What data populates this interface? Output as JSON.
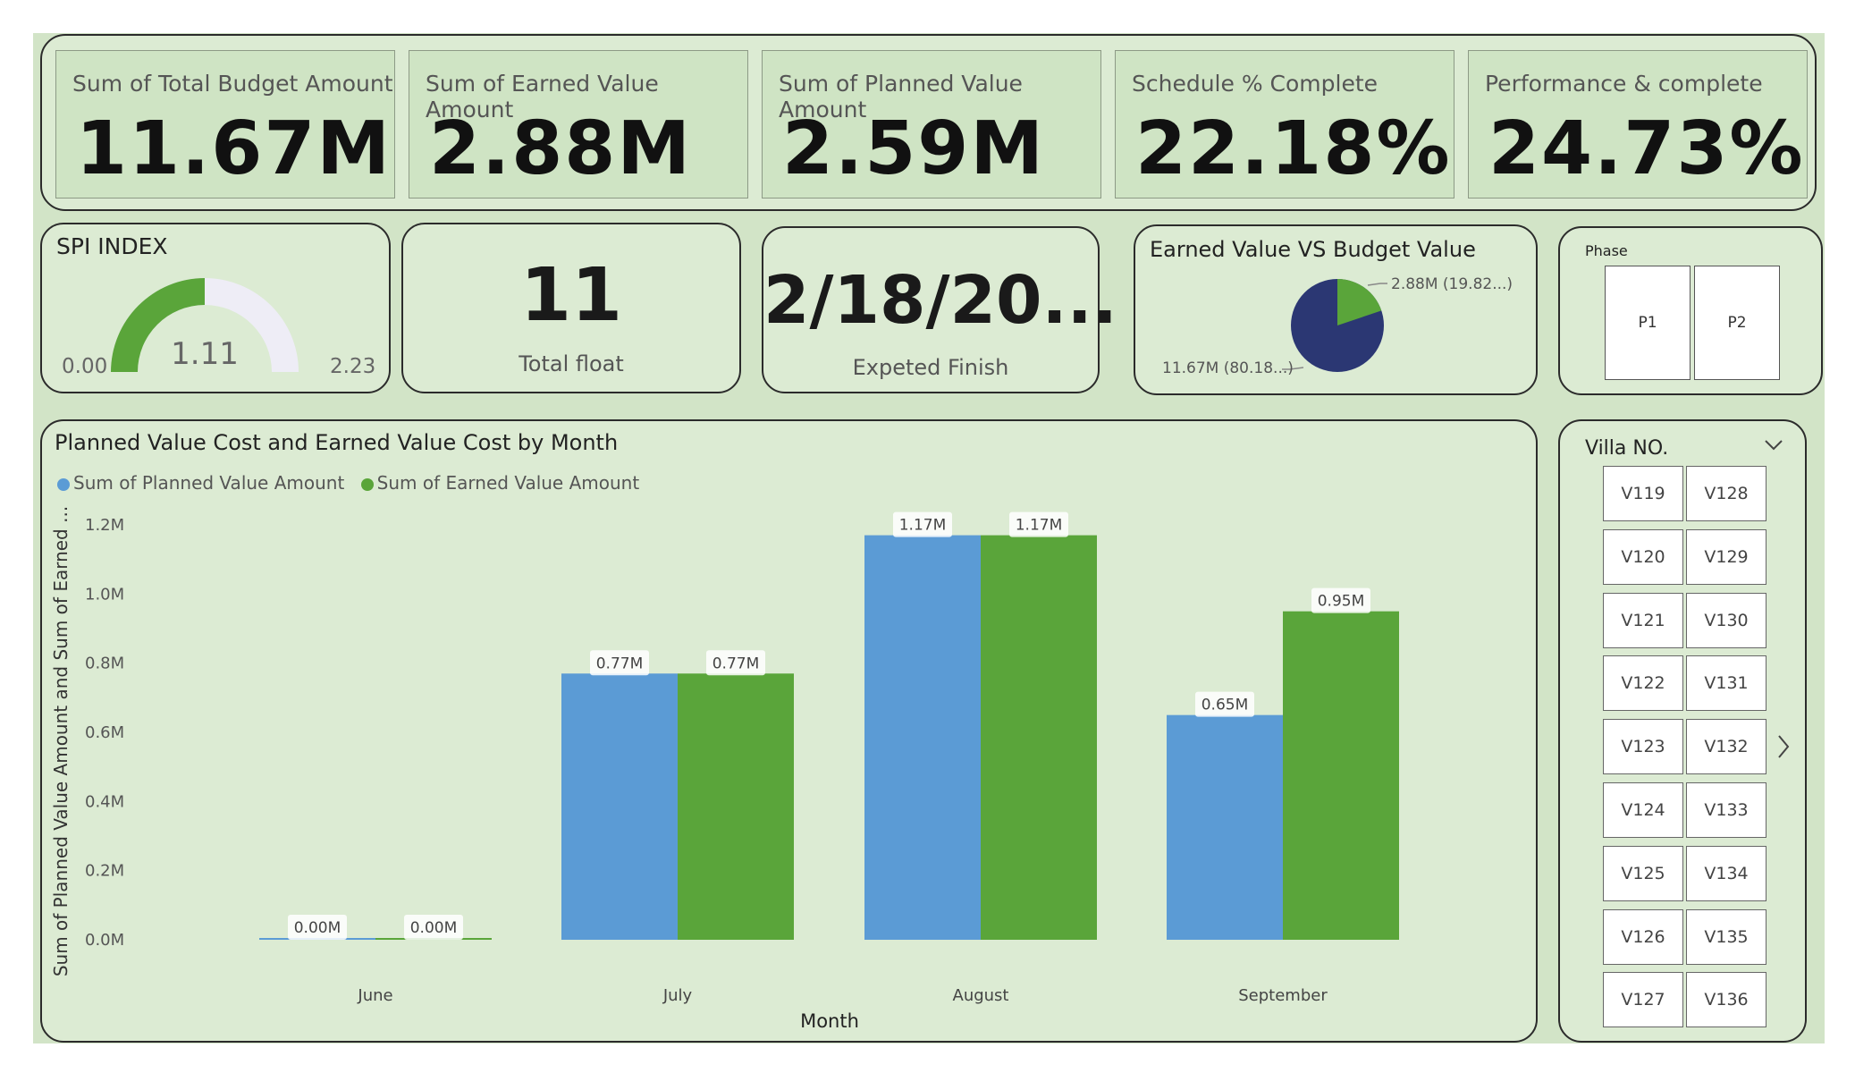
{
  "kpis": [
    {
      "label": "Sum of Total Budget Amount",
      "value": "11.67M"
    },
    {
      "label": "Sum of Earned Value Amount",
      "value": "2.88M"
    },
    {
      "label": "Sum of Planned Value Amount",
      "value": "2.59M"
    },
    {
      "label": "Schedule % Complete",
      "value": "22.18%"
    },
    {
      "label": "Performance & complete",
      "value": "24.73%"
    }
  ],
  "spi": {
    "title": "SPI INDEX",
    "min": "0.00",
    "value": "1.11",
    "max": "2.23",
    "fill_fraction": 0.5
  },
  "total_float": {
    "value": "11",
    "label": "Total float"
  },
  "finish": {
    "value": "2/18/20...",
    "label": "Expeted Finish"
  },
  "pie": {
    "title": "Earned Value VS Budget Value",
    "label_earned": "2.88M (19.82...)",
    "label_budget": "11.67M (80.18...)",
    "earned_fraction": 0.1982,
    "colors": {
      "earned": "#5aa53a",
      "budget": "#2b3773"
    }
  },
  "phase": {
    "title": "Phase",
    "items": [
      "P1",
      "P2"
    ]
  },
  "villa": {
    "title": "Villa NO.",
    "items": [
      "V119",
      "V128",
      "V120",
      "V129",
      "V121",
      "V130",
      "V122",
      "V131",
      "V123",
      "V132",
      "V124",
      "V133",
      "V125",
      "V134",
      "V126",
      "V135",
      "V127",
      "V136"
    ]
  },
  "bar_chart": {
    "title": "Planned Value Cost and Earned Value Cost by Month"
  },
  "chart_data": {
    "type": "bar",
    "title": "Planned Value Cost and Earned Value Cost by Month",
    "xlabel": "Month",
    "ylabel": "Sum of Planned Value Amount and Sum of Earned ...",
    "categories": [
      "June",
      "July",
      "August",
      "September"
    ],
    "series": [
      {
        "name": "Sum of Planned Value Amount",
        "values": [
          0.0,
          0.77,
          1.17,
          0.65
        ],
        "labels": [
          "0.00M",
          "0.77M",
          "1.17M",
          "0.65M"
        ],
        "color": "#5b9bd5"
      },
      {
        "name": "Sum of Earned Value Amount",
        "values": [
          0.0,
          0.77,
          1.17,
          0.95
        ],
        "labels": [
          "0.00M",
          "0.77M",
          "1.17M",
          "0.95M"
        ],
        "color": "#5aa53a"
      }
    ],
    "yticks": [
      "0.0M",
      "0.2M",
      "0.4M",
      "0.6M",
      "0.8M",
      "1.0M",
      "1.2M"
    ],
    "ylim": [
      0,
      1.2
    ],
    "legend_position": "top-left",
    "grid": false
  }
}
